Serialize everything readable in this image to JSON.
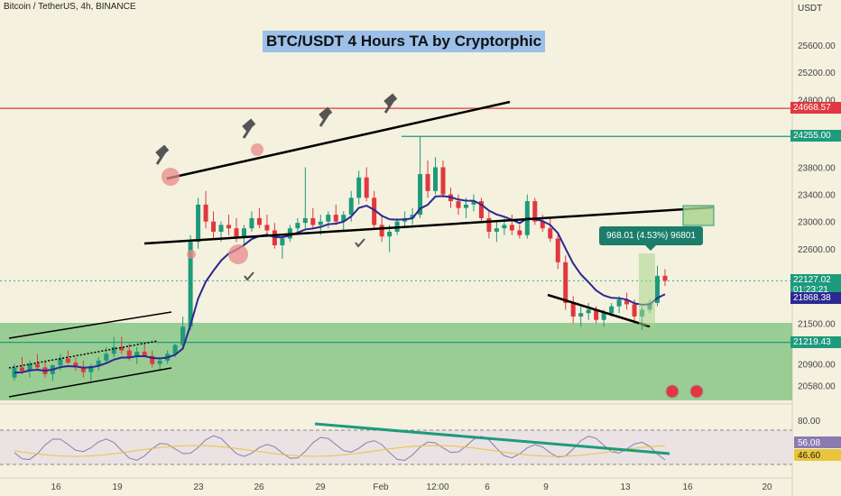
{
  "header": {
    "symbol_line": "Bitcoin / TetherUS, 4h, BINANCE",
    "currency": "USDT"
  },
  "title": "BTC/USDT 4 Hours TA by Cryptorphic",
  "chart_data": {
    "type": "candlestick",
    "title": "BTC/USDT 4 Hours TA by Cryptorphic",
    "exchange": "BINANCE",
    "interval": "4h",
    "y_ticks": [
      25600,
      25200,
      24800,
      23800,
      23400,
      23000,
      22600,
      21500,
      20900,
      20580
    ],
    "y_tick_labels": [
      "25600.00",
      "25200.00",
      "24800.00",
      "23800.00",
      "23400.00",
      "23000.00",
      "22600.00",
      "21500.00",
      "20900.00",
      "20580.00"
    ],
    "ylim": [
      20350,
      26000
    ],
    "x_tick_labels": [
      "16",
      "19",
      "23",
      "26",
      "29",
      "Feb",
      "12:00",
      "6",
      "9",
      "13",
      "16",
      "20"
    ],
    "price_levels": [
      {
        "label": "24668.57",
        "value": 24668.57,
        "color": "#e0383e"
      },
      {
        "label": "24255.00",
        "value": 24255.0,
        "color": "#1e9a7c"
      },
      {
        "label": "21219.43",
        "value": 21219.43,
        "color": "#1e9a7c"
      }
    ],
    "last_price": {
      "label": "22127.02",
      "countdown": "01:23:21",
      "color": "#1e9a7c"
    },
    "moving_average": {
      "label": "21868.38",
      "color": "#2c2891"
    },
    "candles": [
      [
        20700,
        20900,
        20650,
        20850
      ],
      [
        20850,
        21000,
        20750,
        20800
      ],
      [
        20800,
        20950,
        20700,
        20900
      ],
      [
        20900,
        21050,
        20800,
        20850
      ],
      [
        20850,
        20950,
        20700,
        20750
      ],
      [
        20750,
        20900,
        20650,
        20880
      ],
      [
        20880,
        21050,
        20800,
        20980
      ],
      [
        20980,
        21100,
        20900,
        20920
      ],
      [
        20920,
        21000,
        20800,
        20850
      ],
      [
        20850,
        20950,
        20700,
        20780
      ],
      [
        20780,
        20900,
        20650,
        20870
      ],
      [
        20870,
        21000,
        20800,
        20950
      ],
      [
        20950,
        21150,
        20900,
        21050
      ],
      [
        21050,
        21300,
        21000,
        21150
      ],
      [
        21150,
        21300,
        21050,
        21100
      ],
      [
        21100,
        21200,
        20950,
        21000
      ],
      [
        21000,
        21150,
        20900,
        21080
      ],
      [
        21080,
        21200,
        21000,
        21020
      ],
      [
        21020,
        21100,
        20850,
        20900
      ],
      [
        20900,
        21000,
        20800,
        20950
      ],
      [
        20950,
        21100,
        20900,
        21050
      ],
      [
        21050,
        21200,
        21000,
        21180
      ],
      [
        21180,
        21600,
        21150,
        21450
      ],
      [
        21450,
        22800,
        21400,
        22700
      ],
      [
        22700,
        23350,
        22600,
        23250
      ],
      [
        23250,
        23450,
        22900,
        23000
      ],
      [
        23000,
        23150,
        22750,
        22850
      ],
      [
        22850,
        23000,
        22700,
        22950
      ],
      [
        22950,
        23100,
        22800,
        22900
      ],
      [
        22900,
        23050,
        22700,
        22780
      ],
      [
        22780,
        22950,
        22650,
        22900
      ],
      [
        22900,
        23150,
        22850,
        23050
      ],
      [
        23050,
        23200,
        22900,
        22950
      ],
      [
        22950,
        23100,
        22800,
        22870
      ],
      [
        22870,
        22980,
        22600,
        22650
      ],
      [
        22650,
        22800,
        22450,
        22750
      ],
      [
        22750,
        22950,
        22700,
        22900
      ],
      [
        22900,
        23050,
        22800,
        22980
      ],
      [
        22980,
        23800,
        22900,
        23050
      ],
      [
        23050,
        23200,
        22900,
        22950
      ],
      [
        22950,
        23100,
        22800,
        23000
      ],
      [
        23000,
        23150,
        22900,
        23100
      ],
      [
        23100,
        23250,
        22950,
        23000
      ],
      [
        23000,
        23150,
        22850,
        23100
      ],
      [
        23100,
        23450,
        23000,
        23350
      ],
      [
        23350,
        23750,
        23250,
        23650
      ],
      [
        23650,
        23800,
        23300,
        23350
      ],
      [
        23350,
        23450,
        22900,
        22950
      ],
      [
        22950,
        23100,
        22700,
        22780
      ],
      [
        22780,
        22950,
        22550,
        22850
      ],
      [
        22850,
        23050,
        22800,
        23000
      ],
      [
        23000,
        23150,
        22900,
        23050
      ],
      [
        23050,
        23200,
        22950,
        23100
      ],
      [
        23100,
        24250,
        23050,
        23700
      ],
      [
        23700,
        23900,
        23350,
        23450
      ],
      [
        23450,
        23950,
        23400,
        23800
      ],
      [
        23800,
        23900,
        23350,
        23400
      ],
      [
        23400,
        23500,
        23200,
        23300
      ],
      [
        23300,
        23400,
        23100,
        23200
      ],
      [
        23200,
        23350,
        23050,
        23250
      ],
      [
        23250,
        23400,
        23150,
        23300
      ],
      [
        23300,
        23350,
        23000,
        23050
      ],
      [
        23050,
        23150,
        22750,
        22850
      ],
      [
        22850,
        23000,
        22700,
        22900
      ],
      [
        22900,
        23050,
        22800,
        22950
      ],
      [
        22950,
        23100,
        22800,
        22870
      ],
      [
        22870,
        22950,
        22750,
        22800
      ],
      [
        22800,
        23400,
        22750,
        23300
      ],
      [
        23300,
        23350,
        22950,
        23000
      ],
      [
        23000,
        23100,
        22850,
        22900
      ],
      [
        22900,
        23050,
        22700,
        22750
      ],
      [
        22750,
        22800,
        22300,
        22400
      ],
      [
        22400,
        22500,
        21700,
        21800
      ],
      [
        21800,
        21900,
        21500,
        21600
      ],
      [
        21600,
        21750,
        21450,
        21650
      ],
      [
        21650,
        21800,
        21550,
        21700
      ],
      [
        21700,
        21750,
        21500,
        21550
      ],
      [
        21550,
        21700,
        21450,
        21650
      ],
      [
        21650,
        21800,
        21600,
        21750
      ],
      [
        21750,
        21900,
        21650,
        21850
      ],
      [
        21850,
        21950,
        21700,
        21780
      ],
      [
        21780,
        21850,
        21500,
        21600
      ],
      [
        21600,
        21750,
        21400,
        21700
      ],
      [
        21700,
        21850,
        21650,
        21800
      ],
      [
        21800,
        22350,
        21750,
        22200
      ],
      [
        22200,
        22300,
        22050,
        22127
      ]
    ],
    "rsi": {
      "ticks": [
        80,
        56.08,
        46.6
      ],
      "tick_labels": [
        "80.00",
        "56.08",
        "46.60"
      ]
    },
    "annotations": [
      {
        "text": "968.01 (4.53%) 96801",
        "kind": "measure"
      }
    ]
  },
  "colors": {
    "up": "#1e9a7c",
    "down": "#e0383e",
    "ma": "#2c2891",
    "trend": "#000000",
    "zone": "#7cc07b",
    "rsi_line": "#1e9a7c",
    "rsi_band": "#e8dfe3"
  },
  "icons": [
    "gavel-icon",
    "check-icon",
    "flag-icon"
  ]
}
